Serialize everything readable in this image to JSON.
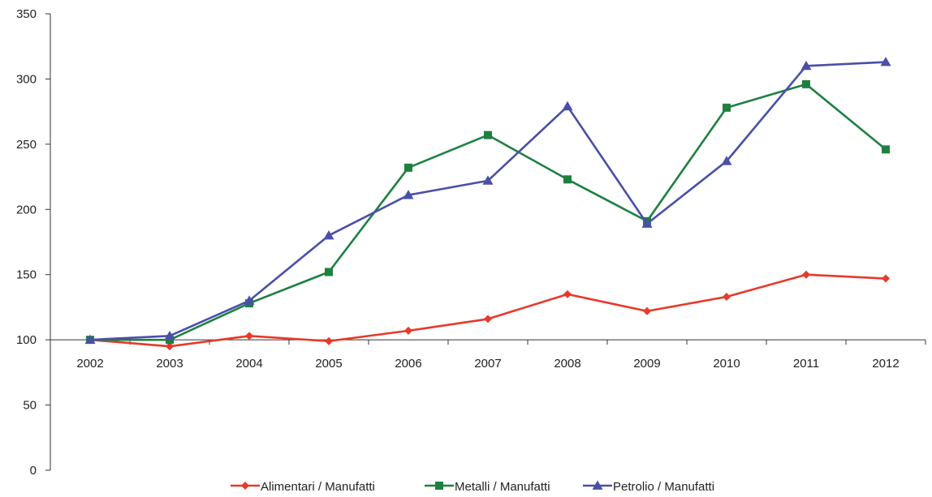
{
  "chart_data": {
    "type": "line",
    "x": [
      "2002",
      "2003",
      "2004",
      "2005",
      "2006",
      "2007",
      "2008",
      "2009",
      "2010",
      "2011",
      "2012"
    ],
    "ylim": [
      0,
      350
    ],
    "yticks": [
      0,
      50,
      100,
      150,
      200,
      250,
      300,
      350
    ],
    "x_axis_crosses_at": 100,
    "grid": false,
    "legend_position": "bottom",
    "series": [
      {
        "name": "Alimentari / Manufatti",
        "color": "#e8392a",
        "marker": "diamond",
        "values": [
          100,
          95,
          103,
          99,
          107,
          116,
          135,
          122,
          133,
          150,
          147
        ]
      },
      {
        "name": "Metalli / Manufatti",
        "color": "#1e8040",
        "marker": "square",
        "values": [
          100,
          100,
          128,
          152,
          232,
          257,
          223,
          191,
          278,
          296,
          246
        ]
      },
      {
        "name": "Petrolio / Manufatti",
        "color": "#4a4fa8",
        "marker": "triangle",
        "values": [
          100,
          103,
          130,
          180,
          211,
          222,
          279,
          189,
          237,
          310,
          313
        ]
      }
    ]
  }
}
